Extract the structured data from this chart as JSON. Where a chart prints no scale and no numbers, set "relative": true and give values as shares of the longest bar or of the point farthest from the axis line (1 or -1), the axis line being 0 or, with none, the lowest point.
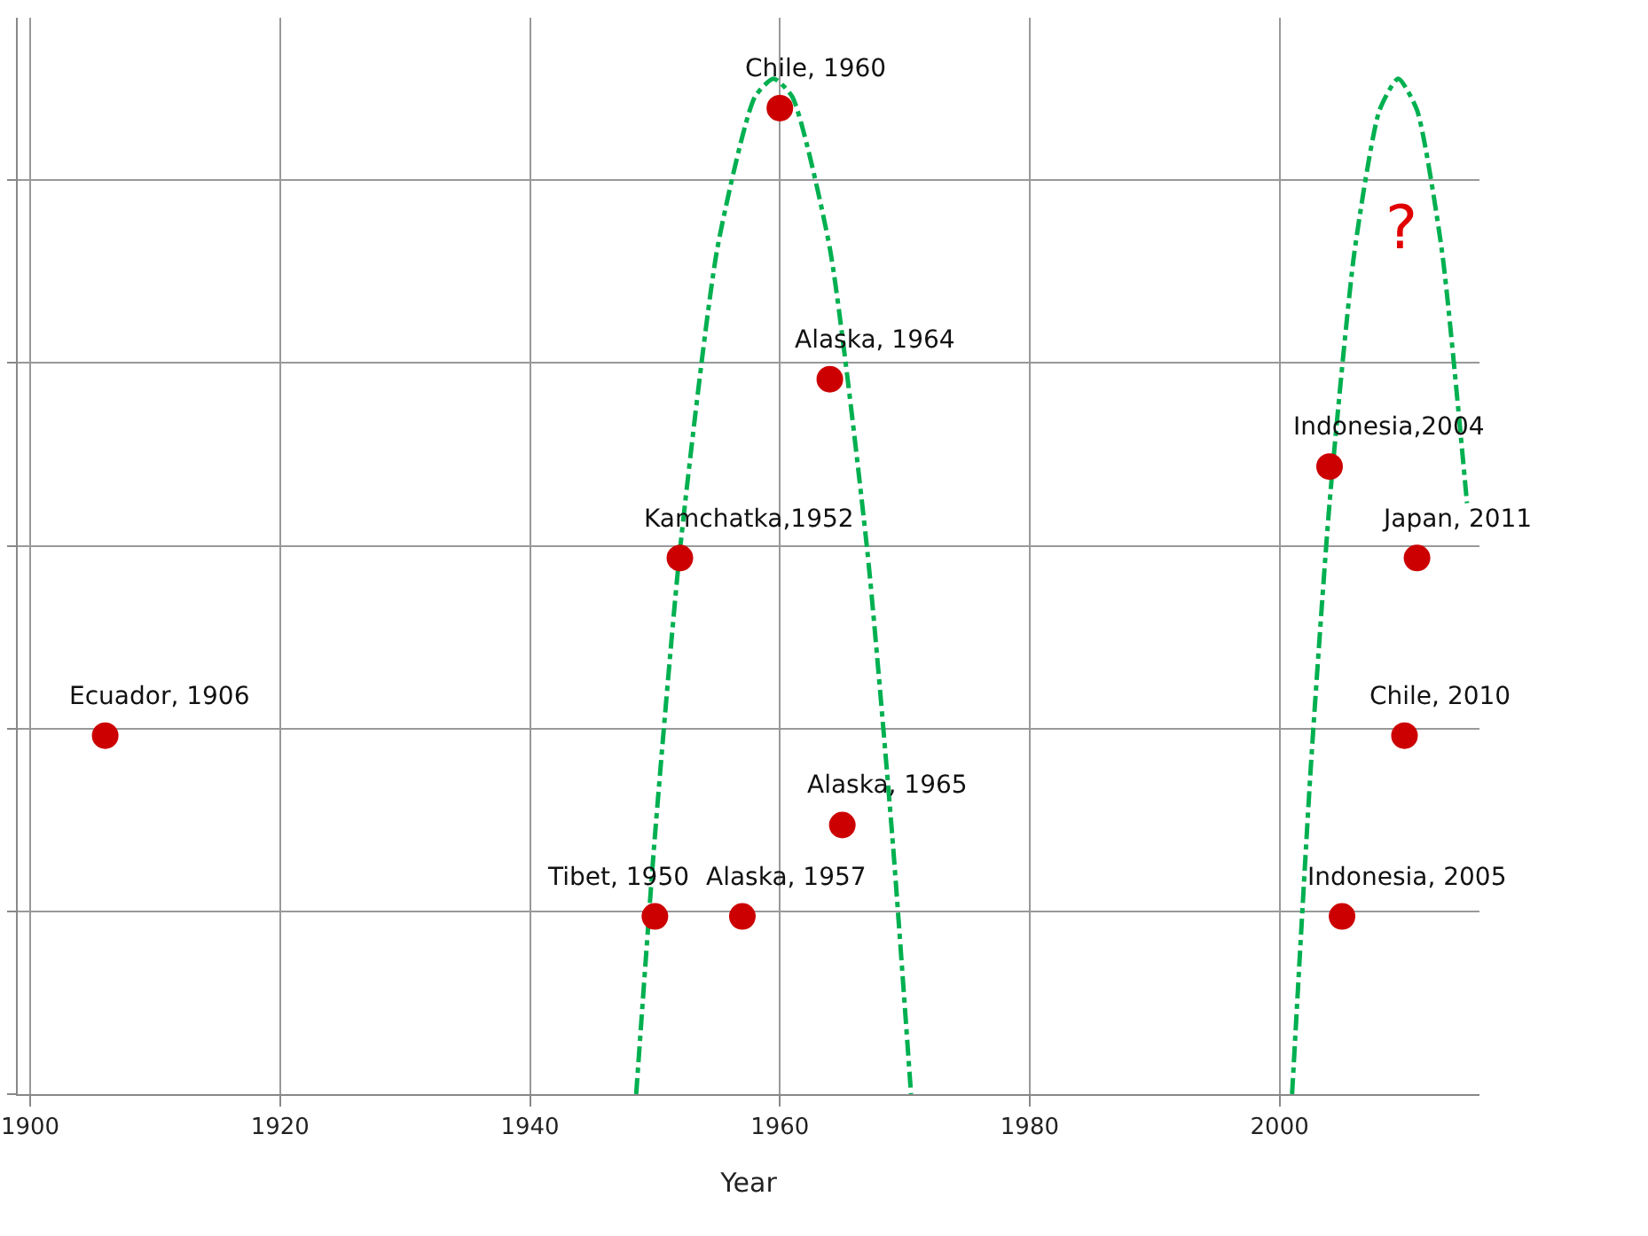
{
  "chart_data": {
    "type": "scatter",
    "xlabel": "Year",
    "relative": true,
    "grid": true,
    "tick_labels": "x",
    "marker": "circle",
    "xlim": [
      1899,
      2016
    ],
    "xticks": [
      1900,
      1920,
      1940,
      1960,
      1980,
      2000
    ],
    "series": [
      {
        "color": "#cc0000",
        "x": [
          1906,
          1950,
          1952,
          1957,
          1960,
          1964,
          1965,
          2004,
          2005,
          2010,
          2011
        ],
        "values": [
          0.353,
          0.175,
          0.528,
          0.175,
          0.971,
          0.704,
          0.265,
          0.618,
          0.175,
          0.353,
          0.528
        ]
      },
      {
        "type": "line",
        "color": "#00b050",
        "marker": "none",
        "line_style": "dashed",
        "x": [
          1948.5,
          1950,
          1952,
          1955,
          1958,
          1959.5,
          1961,
          1964,
          1967,
          1969,
          1970.5
        ],
        "values": [
          0,
          0.254,
          0.535,
          0.833,
          0.982,
          1,
          0.982,
          0.833,
          0.535,
          0.254,
          0
        ]
      },
      {
        "type": "line",
        "color": "#00b050",
        "marker": "none",
        "line_style": "dashed",
        "x": [
          2001,
          2002.5,
          2004,
          2006,
          2008,
          2009.5,
          2011,
          2013,
          2015
        ],
        "values": [
          0,
          0.322,
          0.582,
          0.83,
          0.969,
          1,
          0.969,
          0.83,
          0.582
        ]
      }
    ],
    "annotations": [
      {
        "text": "Ecuador, 1906",
        "x": 1906,
        "y": 0.353
      },
      {
        "text": "Tibet, 1950",
        "x": 1950,
        "y": 0.175
      },
      {
        "text": "Kamchatka,1952",
        "x": 1952,
        "y": 0.528
      },
      {
        "text": "Alaska, 1957",
        "x": 1957,
        "y": 0.175
      },
      {
        "text": "Chile, 1960",
        "x": 1960,
        "y": 0.971
      },
      {
        "text": "Alaska, 1964",
        "x": 1964,
        "y": 0.704
      },
      {
        "text": "Alaska, 1965",
        "x": 1965,
        "y": 0.265
      },
      {
        "text": "Indonesia,2004",
        "x": 2004,
        "y": 0.618
      },
      {
        "text": "Indonesia, 2005",
        "x": 2005,
        "y": 0.175
      },
      {
        "text": "Chile, 2010",
        "x": 2010,
        "y": 0.353
      },
      {
        "text": "Japan, 2011",
        "x": 2011,
        "y": 0.528
      },
      "?"
    ]
  }
}
